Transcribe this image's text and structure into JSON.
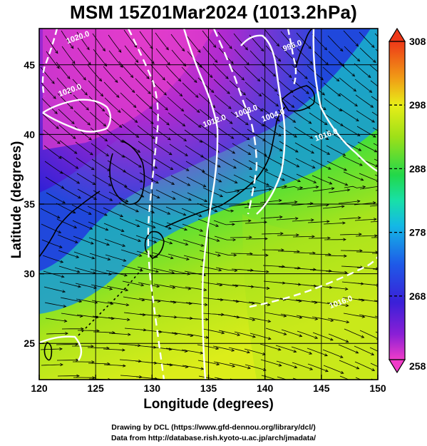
{
  "title": "MSM 15Z01Mar2024 (1013.2hPa)",
  "xlabel": "Longitude (degrees)",
  "ylabel": "Latitude  (degrees)",
  "credits": [
    "Drawing by DCL (https://www.gfd-dennou.org/library/dcl/)",
    "Data from http://database.rish.kyoto-u.ac.jp/arch/jmadata/"
  ],
  "colors": {
    "coast": "#000000",
    "contour": "#ffffff",
    "frame": "#000000"
  },
  "colorbar": {
    "min": 258,
    "max": 308,
    "ticks": [
      {
        "value": 308,
        "label": "308"
      },
      {
        "value": 298,
        "label": "298"
      },
      {
        "value": 288,
        "label": "288"
      },
      {
        "value": 278,
        "label": "278"
      },
      {
        "value": 268,
        "label": "268"
      },
      {
        "value": 258,
        "label": "258"
      }
    ]
  },
  "chart_data": {
    "type": "heatmap",
    "title": "MSM 15Z01Mar2024 (1013.2hPa)",
    "xlabel": "Longitude (degrees)",
    "ylabel": "Latitude  (degrees)",
    "xlim": [
      120,
      150
    ],
    "ylim": [
      22.4,
      47.6
    ],
    "xticks": [
      120,
      125,
      130,
      135,
      140,
      145,
      150
    ],
    "yticks": [
      25,
      30,
      35,
      40,
      45
    ],
    "grid": true,
    "colorbar_range": [
      258,
      308
    ],
    "overlays": [
      "isobar contours",
      "wind streamlines"
    ],
    "contour_labels": [
      {
        "text": "1020.0",
        "lon": 123.5,
        "lat": 46.8
      },
      {
        "text": "1020.0",
        "lon": 122.8,
        "lat": 43.0
      },
      {
        "text": "1012.0",
        "lon": 135.6,
        "lat": 40.8
      },
      {
        "text": "1008.0",
        "lon": 138.4,
        "lat": 41.5
      },
      {
        "text": "1004.0",
        "lon": 140.8,
        "lat": 41.2
      },
      {
        "text": "996.0",
        "lon": 142.5,
        "lat": 46.2
      },
      {
        "text": "1016.0",
        "lon": 145.5,
        "lat": 39.8
      },
      {
        "text": "1016.0",
        "lon": 146.8,
        "lat": 27.8
      }
    ]
  }
}
